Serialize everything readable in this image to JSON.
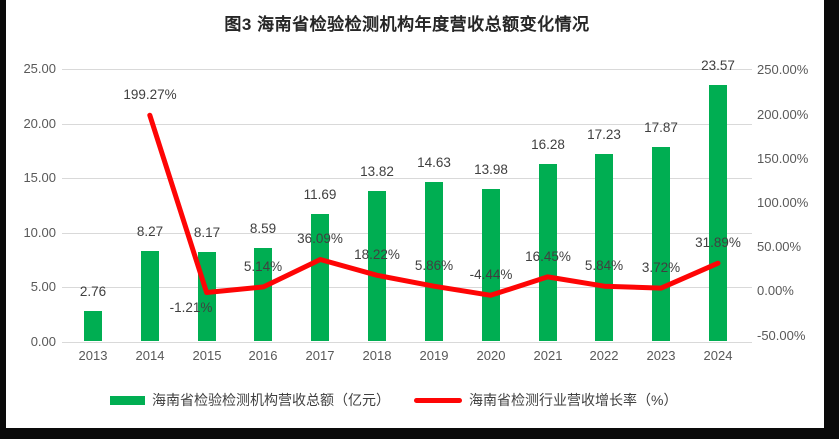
{
  "chart_data": {
    "type": "combo",
    "title": "图3 海南省检验检测机构年度营收总额变化情况",
    "categories": [
      "2013",
      "2014",
      "2015",
      "2016",
      "2017",
      "2018",
      "2019",
      "2020",
      "2021",
      "2022",
      "2023",
      "2024"
    ],
    "series": [
      {
        "name": "海南省检验检测机构营收总额（亿元）",
        "type": "bar",
        "axis": "left",
        "color": "#00AE52",
        "values": [
          2.76,
          8.27,
          8.17,
          8.59,
          11.69,
          13.82,
          14.63,
          13.98,
          16.28,
          17.23,
          17.87,
          23.57
        ],
        "labels": [
          "2.76",
          "8.27",
          "8.17",
          "8.59",
          "11.69",
          "13.82",
          "14.63",
          "13.98",
          "16.28",
          "17.23",
          "17.87",
          "23.57"
        ]
      },
      {
        "name": "海南省检测行业营收增长率（%）",
        "type": "line",
        "axis": "right",
        "color": "#FE0505",
        "values": [
          null,
          199.27,
          -1.21,
          5.14,
          36.09,
          18.22,
          5.86,
          -4.44,
          16.45,
          5.84,
          3.72,
          31.89
        ],
        "labels": [
          null,
          "199.27%",
          "-1.21%",
          "5.14%",
          "36.09%",
          "18.22%",
          "5.86%",
          "-4.44%",
          "16.45%",
          "5.84%",
          "3.72%",
          "31.89%"
        ]
      }
    ],
    "y_left_axis": {
      "range": [
        0,
        25
      ],
      "tick_values": [
        0,
        5,
        10,
        15,
        20,
        25
      ],
      "tick_labels": [
        "0.00",
        "5.00",
        "10.00",
        "15.00",
        "20.00",
        "25.00"
      ]
    },
    "y_right_axis": {
      "range": [
        -50,
        250
      ],
      "tick_values": [
        -50,
        0,
        50,
        100,
        150,
        200,
        250
      ],
      "tick_labels": [
        "-50.00%",
        "0.00%",
        "50.00%",
        "100.00%",
        "150.00%",
        "200.00%",
        "250.00%"
      ]
    },
    "grid": true,
    "legend_position": "bottom",
    "colors": {
      "bar": "#00AE52",
      "line": "#FE0505",
      "gridline": "#d9d9d9",
      "axis_text": "#595959",
      "data_label_text": "#404040",
      "frame": "#0a0a0a"
    }
  }
}
